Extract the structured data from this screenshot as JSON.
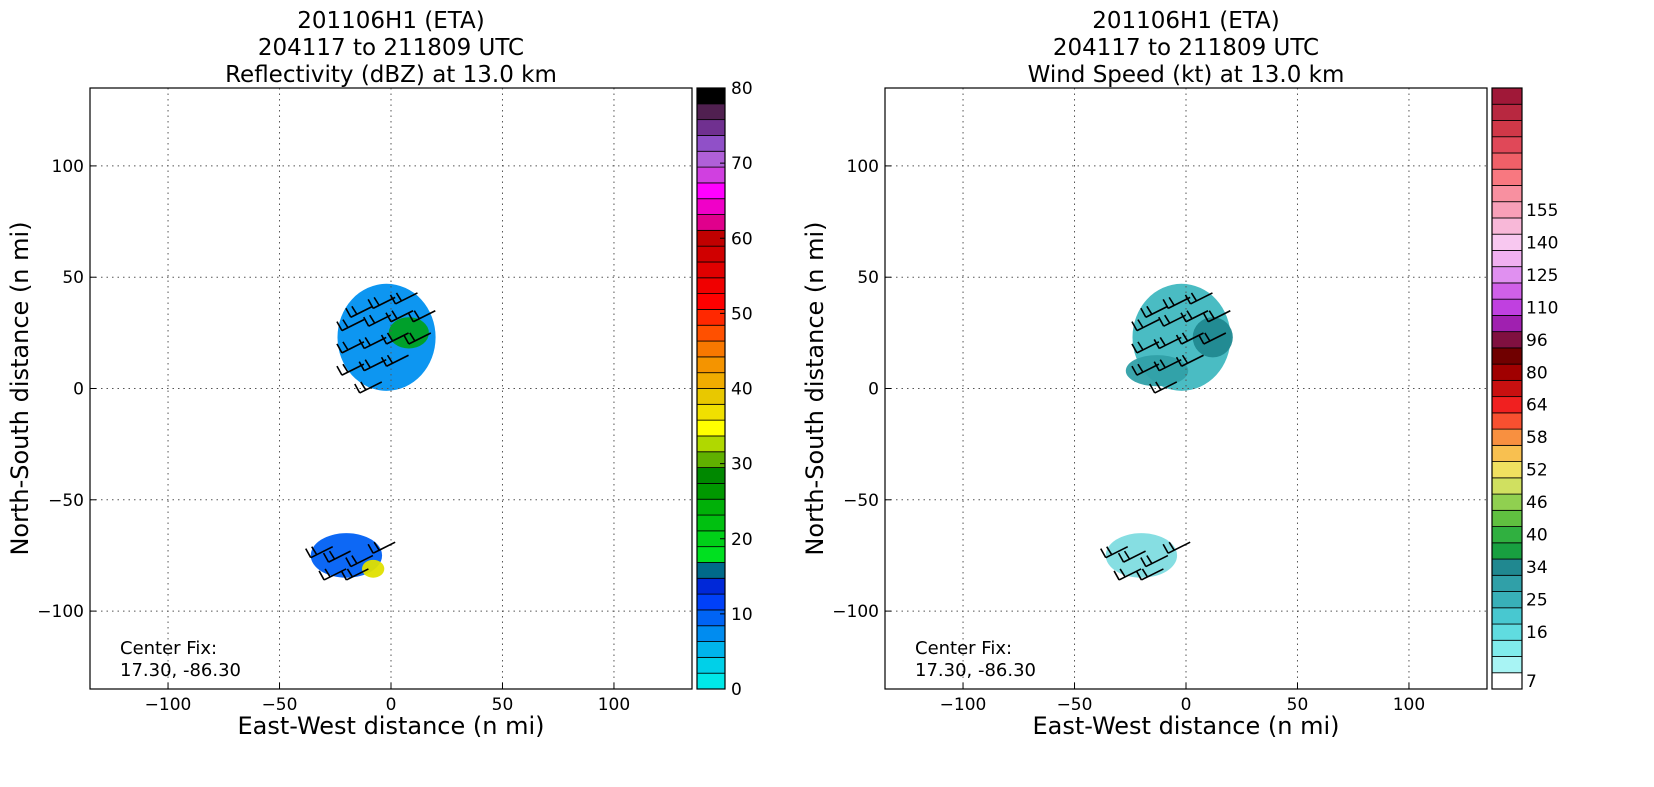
{
  "chart_data": [
    {
      "type": "heatmap",
      "title_lines": [
        "201106H1 (ETA)",
        "204117 to 211809 UTC",
        "Reflectivity (dBZ) at 13.0 km"
      ],
      "xlabel": "East-West distance (n mi)",
      "ylabel": "North-South distance (n mi)",
      "xlim": [
        -135,
        135
      ],
      "ylim": [
        -135,
        135
      ],
      "xticks": [
        -100,
        -50,
        0,
        50,
        100
      ],
      "yticks": [
        -100,
        -50,
        0,
        50,
        100
      ],
      "x_tick_labels": [
        "−100",
        "−50",
        "0",
        "50",
        "100"
      ],
      "y_tick_labels": [
        "−100",
        "−50",
        "0",
        "50",
        "100"
      ],
      "grid": true,
      "annotation": [
        "Center Fix:",
        "17.30, -86.30"
      ],
      "colorbar": {
        "min": 0,
        "max": 80,
        "ticks": [
          0,
          10,
          20,
          30,
          40,
          50,
          60,
          70,
          80
        ],
        "colors": [
          "#00e8e8",
          "#00d0e8",
          "#00b4ec",
          "#008cf0",
          "#0064f4",
          "#0040f8",
          "#0028d8",
          "#006a8a",
          "#00e020",
          "#00d018",
          "#00c010",
          "#00b008",
          "#009800",
          "#008800",
          "#60b000",
          "#b0d800",
          "#ffff00",
          "#f0e000",
          "#e8c800",
          "#f0ac00",
          "#f49400",
          "#f87800",
          "#ff5000",
          "#ff2800",
          "#ff0000",
          "#f00000",
          "#e00000",
          "#d00000",
          "#c00000",
          "#e0008c",
          "#f000c8",
          "#ff00ff",
          "#d040e0",
          "#b060d8",
          "#9050c8",
          "#703090",
          "#502050",
          "#000000"
        ]
      },
      "regions": [
        {
          "x": -2,
          "y": 23,
          "rx": 22,
          "ry": 24,
          "color": "#0090f0"
        },
        {
          "x": 8,
          "y": 25,
          "rx": 9,
          "ry": 7,
          "color": "#00a020"
        },
        {
          "x": -20,
          "y": -75,
          "rx": 16,
          "ry": 10,
          "color": "#0060f4"
        },
        {
          "x": -8,
          "y": -81,
          "rx": 5,
          "ry": 4,
          "color": "#e0e000"
        }
      ]
    },
    {
      "type": "heatmap",
      "title_lines": [
        "201106H1 (ETA)",
        "204117 to 211809 UTC",
        "Wind Speed (kt) at 13.0 km"
      ],
      "xlabel": "East-West distance (n mi)",
      "ylabel": "North-South distance (n mi)",
      "xlim": [
        -135,
        135
      ],
      "ylim": [
        -135,
        135
      ],
      "xticks": [
        -100,
        -50,
        0,
        50,
        100
      ],
      "yticks": [
        -100,
        -50,
        0,
        50,
        100
      ],
      "x_tick_labels": [
        "−100",
        "−50",
        "0",
        "50",
        "100"
      ],
      "y_tick_labels": [
        "−100",
        "−50",
        "0",
        "50",
        "100"
      ],
      "grid": true,
      "annotation": [
        "Center Fix:",
        "17.30, -86.30"
      ],
      "colorbar": {
        "tick_labels": [
          "7",
          "16",
          "25",
          "34",
          "40",
          "46",
          "52",
          "58",
          "64",
          "80",
          "96",
          "110",
          "125",
          "140",
          "155"
        ],
        "colors": [
          "#ffffff",
          "#a8f4f4",
          "#80ecec",
          "#60dce0",
          "#48c8d0",
          "#38b0b8",
          "#30a0a8",
          "#208890",
          "#18a040",
          "#30b040",
          "#60c040",
          "#90d050",
          "#d0e060",
          "#f0e060",
          "#f8c050",
          "#f89040",
          "#f85030",
          "#f02020",
          "#c81010",
          "#a00000",
          "#700000",
          "#801040",
          "#a020b0",
          "#c040e0",
          "#d060e8",
          "#e090f0",
          "#f0b0f0",
          "#f8c8f0",
          "#f8b8d8",
          "#f8a0b8",
          "#f890a0",
          "#f87880",
          "#f06068",
          "#e04858",
          "#d03848",
          "#b82840",
          "#a01838"
        ]
      },
      "regions": [
        {
          "x": -2,
          "y": 23,
          "rx": 22,
          "ry": 24,
          "color": "#40b8c0"
        },
        {
          "x": 12,
          "y": 23,
          "rx": 9,
          "ry": 9,
          "color": "#208890"
        },
        {
          "x": -13,
          "y": 8,
          "rx": 14,
          "ry": 7,
          "color": "#30a0a8"
        },
        {
          "x": -20,
          "y": -75,
          "rx": 16,
          "ry": 10,
          "color": "#80dce0"
        }
      ]
    }
  ]
}
